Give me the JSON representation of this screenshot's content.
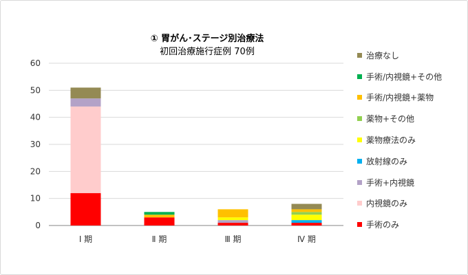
{
  "chart_data": {
    "type": "bar",
    "stacked": true,
    "title": "① 胃がん･ステージ別治療法",
    "subtitle": "初回治療施行症例 70例",
    "categories": [
      "Ⅰ 期",
      "Ⅱ 期",
      "Ⅲ 期",
      "Ⅳ 期"
    ],
    "ylim": [
      0,
      60
    ],
    "yticks": [
      0,
      10,
      20,
      30,
      40,
      50,
      60
    ],
    "grid": true,
    "legend_position": "right",
    "series": [
      {
        "name": "手術のみ",
        "color": "#FF0000",
        "values": [
          12,
          3,
          1,
          1
        ]
      },
      {
        "name": "内視鏡のみ",
        "color": "#FFCCCC",
        "values": [
          32,
          0,
          0,
          0
        ]
      },
      {
        "name": "手術+内視鏡",
        "color": "#B3A2C7",
        "values": [
          3,
          0,
          1,
          0
        ]
      },
      {
        "name": "放射線のみ",
        "color": "#00B0F0",
        "values": [
          0,
          0,
          0,
          1
        ]
      },
      {
        "name": "薬物療法のみ",
        "color": "#FFFF00",
        "values": [
          0,
          0,
          1,
          2
        ]
      },
      {
        "name": "薬物+その他",
        "color": "#92D050",
        "values": [
          0,
          0,
          0,
          1
        ]
      },
      {
        "name": "手術/内視鏡+薬物",
        "color": "#FFC000",
        "values": [
          0,
          1,
          3,
          1
        ]
      },
      {
        "name": "手術/内視鏡+その他",
        "color": "#00B050",
        "values": [
          0,
          1,
          0,
          0
        ]
      },
      {
        "name": "治療なし",
        "color": "#948A54",
        "values": [
          4,
          0,
          0,
          2
        ]
      }
    ]
  }
}
